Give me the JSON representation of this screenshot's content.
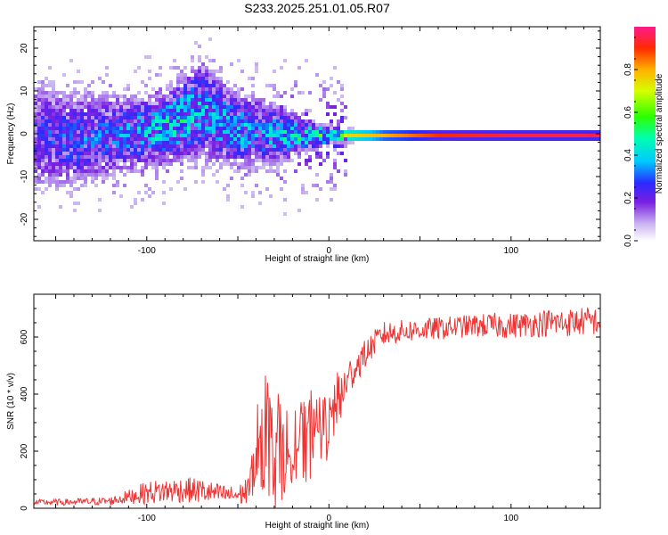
{
  "title": "S233.2025.251.01.05.R07",
  "chart_data": [
    {
      "type": "heatmap",
      "title": "S233.2025.251.01.05.R07",
      "xlabel": "Height of straight line (km)",
      "ylabel": "Frequency (Hz)",
      "xlim": [
        -162,
        149
      ],
      "ylim": [
        -25,
        25
      ],
      "xticks": [
        -100,
        0,
        100
      ],
      "yticks": [
        -20,
        -10,
        0,
        10,
        20
      ],
      "colorbar": {
        "label": "Normalized spectral amplitude",
        "range": [
          0,
          1
        ],
        "ticks": [
          0.0,
          0.2,
          0.4,
          0.6,
          0.8
        ],
        "tick_labels": [
          "0.0",
          "0.2",
          "0.4",
          "0.6",
          "0.8"
        ]
      },
      "ridge_description": "energy concentrated near 0 Hz; scattered low-amplitude patches for negative heights, continuous high-amplitude line for heights above ~0 km",
      "ridge_profile": [
        {
          "x": -160,
          "freq": 0,
          "amp": 0.25,
          "spread_hz": 8
        },
        {
          "x": -140,
          "freq": -1,
          "amp": 0.3,
          "spread_hz": 7
        },
        {
          "x": -120,
          "freq": 0,
          "amp": 0.3,
          "spread_hz": 6
        },
        {
          "x": -100,
          "freq": 1,
          "amp": 0.4,
          "spread_hz": 5
        },
        {
          "x": -90,
          "freq": 2,
          "amp": 0.45,
          "spread_hz": 5
        },
        {
          "x": -80,
          "freq": 4,
          "amp": 0.45,
          "spread_hz": 6
        },
        {
          "x": -70,
          "freq": 6,
          "amp": 0.4,
          "spread_hz": 7
        },
        {
          "x": -60,
          "freq": 3,
          "amp": 0.4,
          "spread_hz": 6
        },
        {
          "x": -50,
          "freq": 1,
          "amp": 0.4,
          "spread_hz": 5
        },
        {
          "x": -40,
          "freq": 1,
          "amp": 0.35,
          "spread_hz": 5
        },
        {
          "x": -30,
          "freq": 0,
          "amp": 0.4,
          "spread_hz": 4
        },
        {
          "x": -20,
          "freq": 0,
          "amp": 0.45,
          "spread_hz": 3
        },
        {
          "x": -10,
          "freq": 0,
          "amp": 0.5,
          "spread_hz": 2
        },
        {
          "x": 0,
          "freq": 0,
          "amp": 0.7,
          "spread_hz": 1
        },
        {
          "x": 10,
          "freq": 0,
          "amp": 0.75,
          "spread_hz": 0.8
        },
        {
          "x": 30,
          "freq": 0,
          "amp": 0.8,
          "spread_hz": 0.6
        },
        {
          "x": 60,
          "freq": 0,
          "amp": 0.9,
          "spread_hz": 0.5
        },
        {
          "x": 100,
          "freq": 0,
          "amp": 0.95,
          "spread_hz": 0.5
        },
        {
          "x": 149,
          "freq": 0,
          "amp": 0.95,
          "spread_hz": 0.5
        }
      ]
    },
    {
      "type": "line",
      "xlabel": "Height of straight line (km)",
      "ylabel": "SNR (10 * v/v)",
      "xlim": [
        -162,
        149
      ],
      "ylim": [
        0,
        750
      ],
      "xticks": [
        -100,
        0,
        100
      ],
      "yticks": [
        0,
        200,
        400,
        600
      ],
      "color": "#ee3333",
      "series": [
        {
          "name": "SNR",
          "envelope": {
            "x": [
              -162,
              -140,
              -120,
              -110,
              -100,
              -90,
              -80,
              -70,
              -60,
              -50,
              -45,
              -40,
              -35,
              -30,
              -25,
              -20,
              -15,
              -10,
              -5,
              0,
              5,
              10,
              15,
              20,
              25,
              30,
              40,
              50,
              60,
              70,
              80,
              90,
              100,
              110,
              120,
              130,
              140,
              149
            ],
            "mean": [
              20,
              22,
              25,
              40,
              55,
              60,
              65,
              60,
              50,
              45,
              60,
              200,
              260,
              240,
              200,
              240,
              250,
              260,
              280,
              300,
              380,
              450,
              500,
              540,
              580,
              610,
              620,
              625,
              630,
              635,
              640,
              640,
              640,
              645,
              650,
              650,
              655,
              655
            ],
            "noise": [
              10,
              12,
              15,
              25,
              40,
              45,
              45,
              45,
              35,
              30,
              60,
              140,
              180,
              170,
              150,
              150,
              140,
              130,
              110,
              90,
              80,
              70,
              60,
              50,
              45,
              45,
              40,
              40,
              40,
              40,
              40,
              45,
              45,
              45,
              50,
              50,
              50,
              50
            ]
          }
        }
      ]
    }
  ]
}
